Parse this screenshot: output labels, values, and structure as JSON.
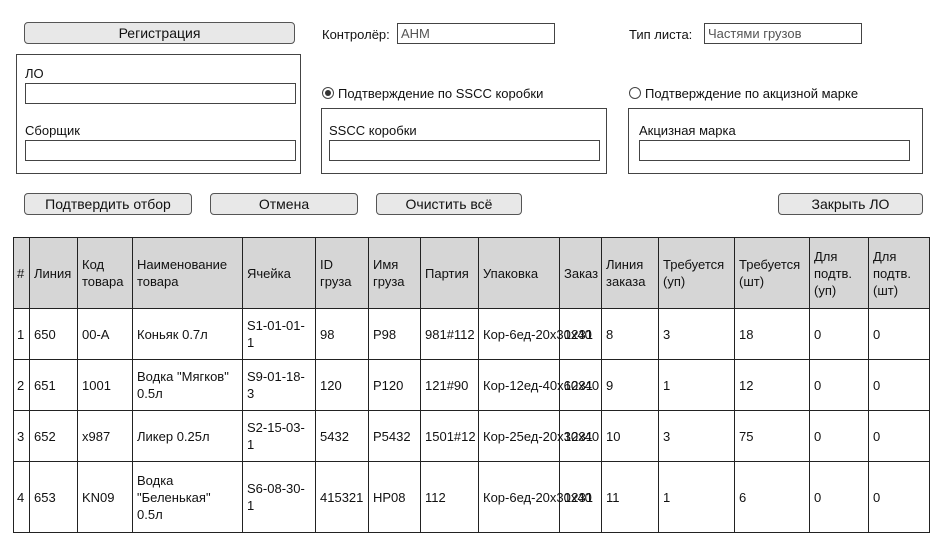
{
  "buttons": {
    "register": "Регистрация",
    "confirm": "Подтвердить отбор",
    "cancel": "Отмена",
    "clear": "Очистить всё",
    "close": "Закрыть ЛО"
  },
  "controller": {
    "label": "Контролёр:",
    "value": "АНМ"
  },
  "sheet_type": {
    "label": "Тип листа:",
    "value": "Частями грузов"
  },
  "lo_group": {
    "lo_label": "ЛО",
    "lo_value": "",
    "picker_label": "Сборщик",
    "picker_value": ""
  },
  "sscc_option": {
    "label": "Подтверждение по SSCC коробки",
    "selected": true,
    "field_label": "SSCC коробки",
    "field_value": ""
  },
  "excise_option": {
    "label": "Подтверждение по акцизной марке",
    "selected": false,
    "field_label": "Акцизная марка",
    "field_value": ""
  },
  "table": {
    "headers": [
      "#",
      "Линия",
      "Код товара",
      "Наименование товара",
      "Ячейка",
      "ID груза",
      "Имя груза",
      "Партия",
      "Упаковка",
      "Заказ",
      "Линия заказа",
      "Требуется (уп)",
      "Требуется (шт)",
      "Для подтв. (уп)",
      "Для подтв. (шт)"
    ],
    "rows": [
      [
        "1",
        "650",
        "00-А",
        "Коньяк 0.7л",
        "S1-01-01-1",
        "98",
        "P98",
        "981#112",
        "Кор-6ед-20x30x40",
        "1231",
        "8",
        "3",
        "18",
        "0",
        "0"
      ],
      [
        "2",
        "651",
        "1001",
        "Водка \"Мягков\" 0.5л",
        "S9-01-18-3",
        "120",
        "P120",
        "121#90",
        "Кор-12ед-40x60x40",
        "1231",
        "9",
        "1",
        "12",
        "0",
        "0"
      ],
      [
        "3",
        "652",
        "x987",
        "Ликер 0.25л",
        "S2-15-03-1",
        "5432",
        "P5432",
        "1501#12",
        "Кор-25ед-20x30x40",
        "1231",
        "10",
        "3",
        "75",
        "0",
        "0"
      ],
      [
        "4",
        "653",
        "KN09",
        "Водка \"Беленькая\" 0.5л",
        "S6-08-30-1",
        "415321",
        "HP08",
        "112",
        "Кор-6ед-20x30x40",
        "1231",
        "11",
        "1",
        "6",
        "0",
        "0"
      ]
    ]
  }
}
